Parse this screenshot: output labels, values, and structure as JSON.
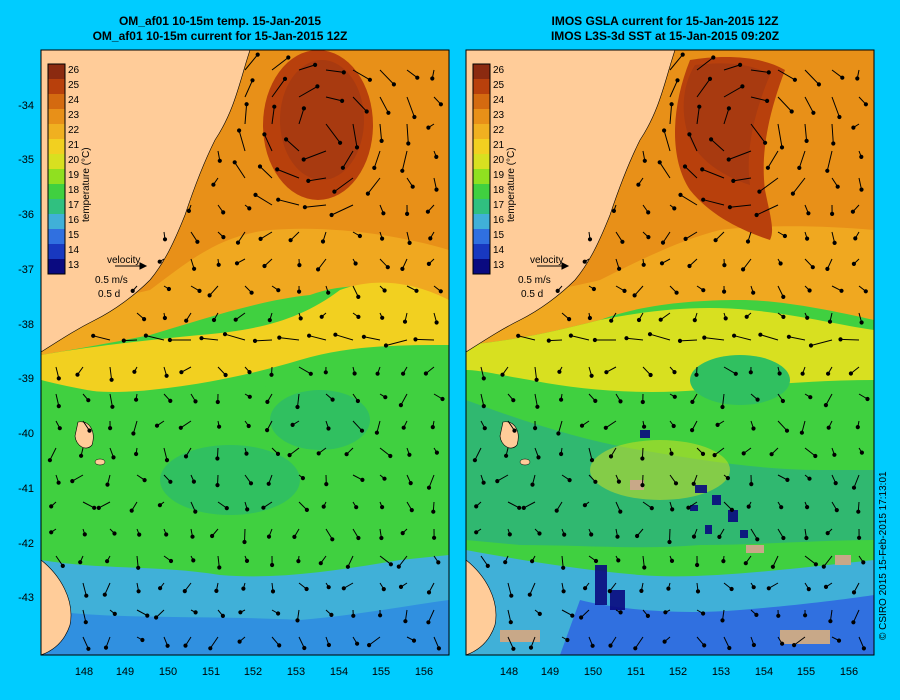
{
  "panels": [
    {
      "id": "left",
      "title_line1": "OM_af01 10-15m temp. 15-Jan-2015",
      "title_line2": "OM_af01 10-15m current for 15-Jan-2015 12Z"
    },
    {
      "id": "right",
      "title_line1": "IMOS GSLA current for 15-Jan-2015 12Z",
      "title_line2": "IMOS L3S-3d SST at 15-Jan-2015 09:20Z"
    }
  ],
  "colorbar": {
    "title": "temperature (°C)",
    "ticks": [
      "26",
      "25",
      "24",
      "23",
      "22",
      "21",
      "20",
      "19",
      "18",
      "17",
      "16",
      "15",
      "14",
      "13"
    ],
    "colors": [
      "#8b2a10",
      "#b8400c",
      "#d46a10",
      "#e89018",
      "#f0b020",
      "#f2d020",
      "#d8e020",
      "#90e020",
      "#40d040",
      "#30c080",
      "#40b0d8",
      "#3070e0",
      "#1838c0",
      "#0a0a80"
    ]
  },
  "velocity_legend": {
    "label": "velocity",
    "speed": "0.5 m/s",
    "time": "0.5 d"
  },
  "axes": {
    "lat_ticks": [
      "-34",
      "-35",
      "-36",
      "-37",
      "-38",
      "-39",
      "-40",
      "-41",
      "-42",
      "-43"
    ],
    "lon_ticks": [
      "148",
      "149",
      "150",
      "151",
      "152",
      "153",
      "154",
      "155",
      "156"
    ]
  },
  "copyright": "© CSIRO 2015   15-Feb-2015 17:13:01",
  "colors": {
    "background": "#00ccff",
    "land": "#ffcc99",
    "warm_eddy": "#a83a10",
    "temperate": "#f0a820",
    "tasman_green": "#40d040",
    "southern_blue": "#40b0d8"
  }
}
